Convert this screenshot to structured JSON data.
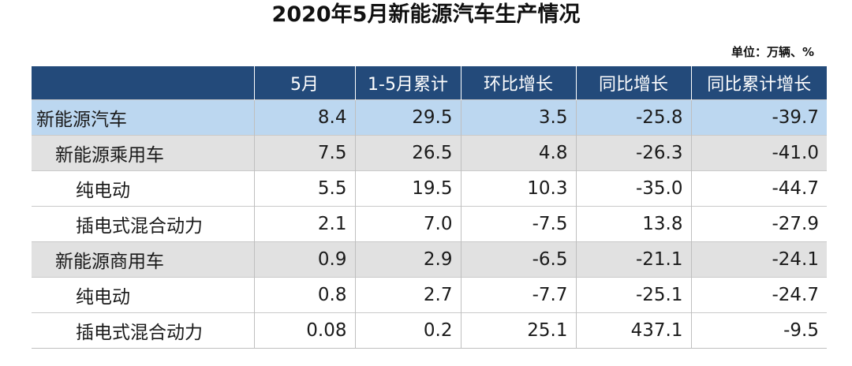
{
  "title": "2020年5月新能源汽车生产情况",
  "unit": "单位：万辆、%",
  "table": {
    "headers": [
      "",
      "5月",
      "1-5月累计",
      "环比增长",
      "同比增长",
      "同比累计增长"
    ],
    "rows": [
      {
        "level": 0,
        "label": "新能源汽车",
        "may": "8.4",
        "ytd": "29.5",
        "mom": "3.5",
        "yoy": "-25.8",
        "ytd_yoy": "-39.7"
      },
      {
        "level": 1,
        "label": "新能源乘用车",
        "may": "7.5",
        "ytd": "26.5",
        "mom": "4.8",
        "yoy": "-26.3",
        "ytd_yoy": "-41.0"
      },
      {
        "level": 2,
        "label": "纯电动",
        "may": "5.5",
        "ytd": "19.5",
        "mom": "10.3",
        "yoy": "-35.0",
        "ytd_yoy": "-44.7"
      },
      {
        "level": 2,
        "label": "插电式混合动力",
        "may": "2.1",
        "ytd": "7.0",
        "mom": "-7.5",
        "yoy": "13.8",
        "ytd_yoy": "-27.9"
      },
      {
        "level": 1,
        "label": "新能源商用车",
        "may": "0.9",
        "ytd": "2.9",
        "mom": "-6.5",
        "yoy": "-21.1",
        "ytd_yoy": "-24.1"
      },
      {
        "level": 2,
        "label": "纯电动",
        "may": "0.8",
        "ytd": "2.7",
        "mom": "-7.7",
        "yoy": "-25.1",
        "ytd_yoy": "-24.7"
      },
      {
        "level": 2,
        "label": "插电式混合动力",
        "may": "0.08",
        "ytd": "0.2",
        "mom": "25.1",
        "yoy": "437.1",
        "ytd_yoy": "-9.5"
      }
    ]
  },
  "colors": {
    "header_bg": "#234a7a",
    "total_row_bg": "#bcd7f0",
    "subtotal_row_bg": "#e1e1e1"
  }
}
